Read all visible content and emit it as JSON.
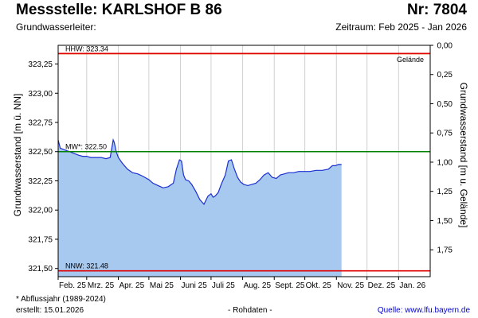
{
  "header": {
    "title": "Messstelle: KARLSHOF B 86",
    "number": "Nr: 7804",
    "subtitle": "Grundwasserleiter:",
    "period": "Zeitraum: Feb 2025 - Jan 2026"
  },
  "footer": {
    "footnote": "* Abflussjahr (1989-2024)",
    "created": "erstellt:  15.01.2026",
    "raw": "- Rohdaten -",
    "source": "Quelle: www.lfu.bayern.de"
  },
  "chart_data": {
    "type": "area",
    "xlabel": "",
    "ylabel": "Grundwasserstand [m ü. NN]",
    "y2label": "Grundwasserstand [m u. Gelände]",
    "ylim": [
      321.43,
      323.41
    ],
    "y2lim": [
      -0.07,
      1.91
    ],
    "grid": "vertical",
    "x_ticks": [
      "Feb. 25",
      "Mrz. 25",
      "Apr. 25",
      "Mai 25",
      "Juni 25",
      "Juli 25",
      "Aug. 25",
      "Sept. 25",
      "Okt. 25",
      "Nov. 25",
      "Dez. 25",
      "Jan. 26"
    ],
    "y_ticks": [
      "321,50",
      "321,75",
      "322,00",
      "322,25",
      "322,50",
      "322,75",
      "323,00",
      "323,25"
    ],
    "y_tick_values": [
      321.5,
      321.75,
      322.0,
      322.25,
      322.5,
      322.75,
      323.0,
      323.25
    ],
    "y2_ticks": [
      "0,00",
      "0,25",
      "0,50",
      "0,75",
      "1,00",
      "1,25",
      "1,50",
      "1,75"
    ],
    "y2_tick_values": [
      0,
      0.25,
      0.5,
      0.75,
      1.0,
      1.25,
      1.5,
      1.75
    ],
    "ground_level": 323.41,
    "reference_lines": [
      {
        "label": "HHW: 323.34",
        "value": 323.34,
        "color": "#e00000"
      },
      {
        "label": "MW*: 322.50",
        "value": 322.5,
        "color": "#008000"
      },
      {
        "label": "NNW: 321.48",
        "value": 321.48,
        "color": "#e00000"
      }
    ],
    "ground_line": {
      "label": "Gelände",
      "value": 323.41,
      "color": "#e8a070"
    },
    "fill_color": "#a7c8ef",
    "line_color": "#1a2fd0",
    "series": [
      {
        "name": "",
        "x": [
          "2025-02-01",
          "2025-02-03",
          "2025-02-06",
          "2025-02-09",
          "2025-02-12",
          "2025-02-15",
          "2025-02-18",
          "2025-02-21",
          "2025-02-25",
          "2025-03-01",
          "2025-03-05",
          "2025-03-10",
          "2025-03-15",
          "2025-03-20",
          "2025-03-24",
          "2025-03-27",
          "2025-03-28",
          "2025-03-30",
          "2025-04-01",
          "2025-04-05",
          "2025-04-10",
          "2025-04-15",
          "2025-04-20",
          "2025-04-25",
          "2025-05-01",
          "2025-05-05",
          "2025-05-10",
          "2025-05-15",
          "2025-05-20",
          "2025-05-25",
          "2025-05-28",
          "2025-05-31",
          "2025-06-02",
          "2025-06-04",
          "2025-06-06",
          "2025-06-09",
          "2025-06-12",
          "2025-06-16",
          "2025-06-20",
          "2025-06-24",
          "2025-06-28",
          "2025-07-01",
          "2025-07-03",
          "2025-07-05",
          "2025-07-08",
          "2025-07-11",
          "2025-07-15",
          "2025-07-18",
          "2025-07-21",
          "2025-07-24",
          "2025-07-27",
          "2025-07-30",
          "2025-08-02",
          "2025-08-06",
          "2025-08-10",
          "2025-08-14",
          "2025-08-18",
          "2025-08-22",
          "2025-08-26",
          "2025-08-30",
          "2025-09-03",
          "2025-09-07",
          "2025-09-11",
          "2025-09-15",
          "2025-09-20",
          "2025-09-25",
          "2025-10-01",
          "2025-10-06",
          "2025-10-12",
          "2025-10-18",
          "2025-10-24",
          "2025-10-28",
          "2025-10-31",
          "2025-11-03",
          "2025-11-06"
        ],
        "y": [
          322.6,
          322.53,
          322.52,
          322.51,
          322.5,
          322.49,
          322.48,
          322.47,
          322.46,
          322.46,
          322.45,
          322.45,
          322.45,
          322.44,
          322.45,
          322.6,
          322.58,
          322.5,
          322.45,
          322.4,
          322.35,
          322.32,
          322.31,
          322.29,
          322.26,
          322.23,
          322.21,
          322.19,
          322.2,
          322.23,
          322.35,
          322.43,
          322.42,
          322.3,
          322.26,
          322.25,
          322.22,
          322.16,
          322.09,
          322.05,
          322.12,
          322.14,
          322.11,
          322.12,
          322.15,
          322.22,
          322.3,
          322.42,
          322.43,
          322.35,
          322.28,
          322.24,
          322.22,
          322.21,
          322.22,
          322.23,
          322.26,
          322.3,
          322.32,
          322.28,
          322.27,
          322.3,
          322.31,
          322.32,
          322.32,
          322.33,
          322.33,
          322.33,
          322.34,
          322.34,
          322.35,
          322.38,
          322.38,
          322.39,
          322.39
        ]
      }
    ]
  }
}
